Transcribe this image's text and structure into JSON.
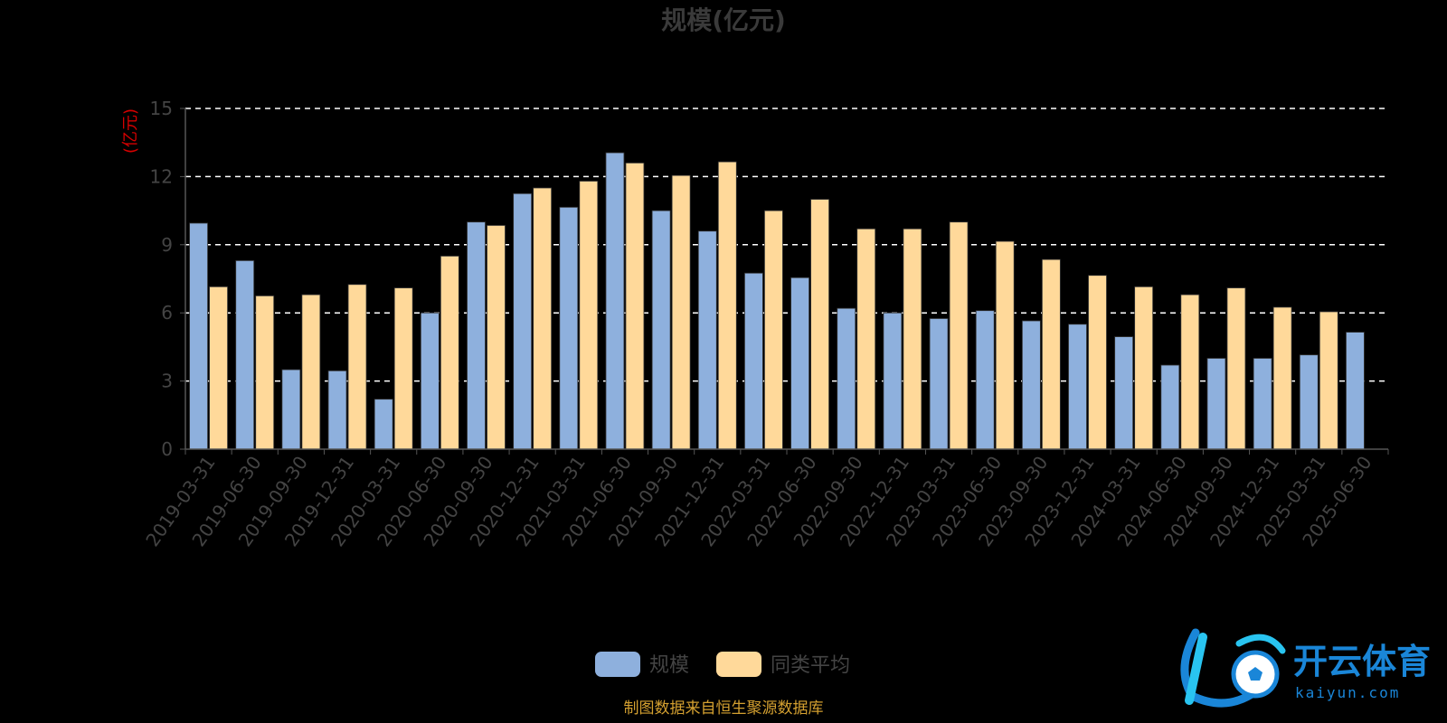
{
  "chart_data": {
    "type": "bar",
    "title": "规模(亿元)",
    "ylabel": "(亿元)",
    "ylim": [
      0,
      15
    ],
    "yticks": [
      0,
      3,
      6,
      9,
      12,
      15
    ],
    "grid": true,
    "legend_position": "bottom-center",
    "categories": [
      "2019-03-31",
      "2019-06-30",
      "2019-09-30",
      "2019-12-31",
      "2020-03-31",
      "2020-06-30",
      "2020-09-30",
      "2020-12-31",
      "2021-03-31",
      "2021-06-30",
      "2021-09-30",
      "2021-12-31",
      "2022-03-31",
      "2022-06-30",
      "2022-09-30",
      "2022-12-31",
      "2023-03-31",
      "2023-06-30",
      "2023-09-30",
      "2023-12-31",
      "2024-03-31",
      "2024-06-30",
      "2024-09-30",
      "2024-12-31",
      "2025-03-31",
      "2025-06-30"
    ],
    "series": [
      {
        "name": "规模",
        "color": "#8eb0dd",
        "values": [
          9.95,
          8.3,
          3.5,
          3.45,
          2.2,
          6.0,
          10.0,
          11.25,
          10.65,
          13.05,
          10.5,
          9.6,
          7.75,
          7.55,
          6.2,
          6.0,
          5.75,
          6.1,
          5.65,
          5.5,
          4.95,
          3.7,
          4.0,
          4.0,
          4.15,
          5.15
        ]
      },
      {
        "name": "同类平均",
        "color": "#ffd99a",
        "values": [
          7.15,
          6.75,
          6.8,
          7.25,
          7.1,
          8.5,
          9.85,
          11.5,
          11.8,
          12.6,
          12.05,
          12.65,
          10.5,
          11.0,
          9.7,
          9.7,
          10.0,
          9.15,
          8.35,
          7.65,
          7.15,
          6.8,
          7.1,
          6.25,
          6.05,
          null
        ]
      }
    ]
  },
  "footer": {
    "source": "制图数据来自恒生聚源数据库"
  },
  "watermark": {
    "brand_cn": "开云体育",
    "brand_en": "kaiyun.com",
    "color": "#1a86d8"
  }
}
